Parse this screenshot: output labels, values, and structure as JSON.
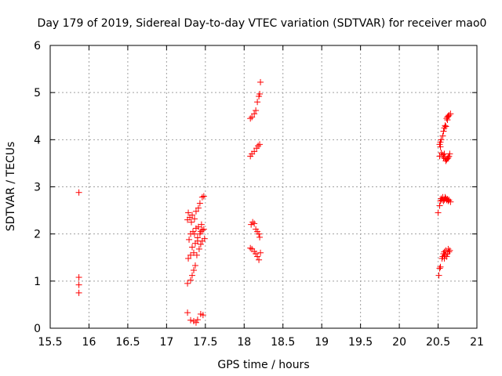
{
  "chart_data": {
    "type": "scatter",
    "title": "Day 179 of 2019, Sidereal Day-to-day VTEC variation (SDTVAR) for receiver mao0",
    "xlabel": "GPS time / hours",
    "ylabel": "SDTVAR / TECUs",
    "xlim": [
      15.5,
      21
    ],
    "ylim": [
      0,
      6
    ],
    "xticks": [
      "15.5",
      "16",
      "16.5",
      "17",
      "17.5",
      "18",
      "18.5",
      "19",
      "19.5",
      "20",
      "20.5",
      "21"
    ],
    "yticks": [
      "0",
      "1",
      "2",
      "3",
      "4",
      "5",
      "6"
    ],
    "grid": true,
    "marker": "+",
    "color": "#ff0000",
    "series": [
      {
        "name": "SDTVAR",
        "points": [
          [
            15.87,
            2.88
          ],
          [
            15.87,
            1.08
          ],
          [
            15.87,
            0.92
          ],
          [
            15.87,
            0.75
          ],
          [
            17.27,
            0.33
          ],
          [
            17.31,
            0.17
          ],
          [
            17.35,
            0.15
          ],
          [
            17.38,
            0.12
          ],
          [
            17.4,
            0.18
          ],
          [
            17.44,
            0.3
          ],
          [
            17.47,
            0.28
          ],
          [
            17.27,
            0.95
          ],
          [
            17.31,
            1.02
          ],
          [
            17.33,
            1.12
          ],
          [
            17.35,
            1.23
          ],
          [
            17.37,
            1.33
          ],
          [
            17.28,
            1.48
          ],
          [
            17.31,
            1.55
          ],
          [
            17.35,
            1.6
          ],
          [
            17.39,
            1.55
          ],
          [
            17.42,
            1.68
          ],
          [
            17.44,
            1.78
          ],
          [
            17.46,
            1.85
          ],
          [
            17.49,
            1.9
          ],
          [
            17.29,
            1.88
          ],
          [
            17.33,
            1.72
          ],
          [
            17.37,
            1.8
          ],
          [
            17.4,
            1.92
          ],
          [
            17.43,
            2.0
          ],
          [
            17.46,
            2.08
          ],
          [
            17.48,
            2.1
          ],
          [
            17.31,
            2.0
          ],
          [
            17.34,
            2.05
          ],
          [
            17.38,
            2.12
          ],
          [
            17.41,
            2.15
          ],
          [
            17.45,
            2.2
          ],
          [
            17.27,
            2.3
          ],
          [
            17.3,
            2.35
          ],
          [
            17.33,
            2.4
          ],
          [
            17.36,
            2.32
          ],
          [
            17.38,
            2.48
          ],
          [
            17.41,
            2.55
          ],
          [
            17.43,
            2.65
          ],
          [
            17.46,
            2.78
          ],
          [
            17.48,
            2.8
          ],
          [
            17.28,
            2.45
          ],
          [
            17.32,
            2.25
          ],
          [
            17.36,
            2.0
          ],
          [
            17.4,
            1.85
          ],
          [
            17.44,
            2.05
          ],
          [
            18.08,
            4.45
          ],
          [
            18.1,
            4.48
          ],
          [
            18.13,
            4.55
          ],
          [
            18.15,
            4.62
          ],
          [
            18.17,
            4.8
          ],
          [
            18.19,
            4.92
          ],
          [
            18.2,
            4.97
          ],
          [
            18.21,
            5.22
          ],
          [
            18.08,
            3.65
          ],
          [
            18.1,
            3.7
          ],
          [
            18.13,
            3.75
          ],
          [
            18.16,
            3.82
          ],
          [
            18.18,
            3.87
          ],
          [
            18.2,
            3.9
          ],
          [
            18.09,
            2.2
          ],
          [
            18.11,
            2.25
          ],
          [
            18.13,
            2.22
          ],
          [
            18.15,
            2.1
          ],
          [
            18.17,
            2.05
          ],
          [
            18.19,
            2.0
          ],
          [
            18.2,
            1.93
          ],
          [
            18.08,
            1.7
          ],
          [
            18.1,
            1.68
          ],
          [
            18.13,
            1.63
          ],
          [
            18.15,
            1.58
          ],
          [
            18.17,
            1.52
          ],
          [
            18.19,
            1.45
          ],
          [
            18.21,
            1.6
          ],
          [
            20.52,
            3.9
          ],
          [
            20.53,
            3.95
          ],
          [
            20.54,
            4.0
          ],
          [
            20.56,
            4.08
          ],
          [
            20.57,
            4.18
          ],
          [
            20.58,
            4.25
          ],
          [
            20.59,
            4.3
          ],
          [
            20.6,
            4.28
          ],
          [
            20.61,
            4.45
          ],
          [
            20.62,
            4.48
          ],
          [
            20.63,
            4.5
          ],
          [
            20.64,
            4.52
          ],
          [
            20.66,
            4.55
          ],
          [
            20.62,
            4.42
          ],
          [
            20.52,
            3.65
          ],
          [
            20.54,
            3.72
          ],
          [
            20.56,
            3.68
          ],
          [
            20.57,
            3.62
          ],
          [
            20.59,
            3.6
          ],
          [
            20.6,
            3.55
          ],
          [
            20.61,
            3.58
          ],
          [
            20.62,
            3.6
          ],
          [
            20.63,
            3.62
          ],
          [
            20.64,
            3.65
          ],
          [
            20.65,
            3.7
          ],
          [
            20.53,
            3.85
          ],
          [
            20.58,
            3.7
          ],
          [
            20.5,
            2.45
          ],
          [
            20.52,
            2.6
          ],
          [
            20.53,
            2.7
          ],
          [
            20.54,
            2.75
          ],
          [
            20.55,
            2.72
          ],
          [
            20.56,
            2.78
          ],
          [
            20.57,
            2.7
          ],
          [
            20.58,
            2.73
          ],
          [
            20.59,
            2.78
          ],
          [
            20.6,
            2.75
          ],
          [
            20.61,
            2.72
          ],
          [
            20.62,
            2.74
          ],
          [
            20.63,
            2.7
          ],
          [
            20.64,
            2.72
          ],
          [
            20.66,
            2.68
          ],
          [
            20.51,
            1.12
          ],
          [
            20.52,
            1.27
          ],
          [
            20.53,
            1.3
          ],
          [
            20.55,
            1.48
          ],
          [
            20.56,
            1.52
          ],
          [
            20.57,
            1.58
          ],
          [
            20.58,
            1.48
          ],
          [
            20.59,
            1.55
          ],
          [
            20.6,
            1.65
          ],
          [
            20.61,
            1.52
          ],
          [
            20.62,
            1.58
          ],
          [
            20.63,
            1.68
          ],
          [
            20.64,
            1.62
          ],
          [
            20.65,
            1.65
          ],
          [
            20.58,
            1.62
          ]
        ]
      }
    ]
  }
}
